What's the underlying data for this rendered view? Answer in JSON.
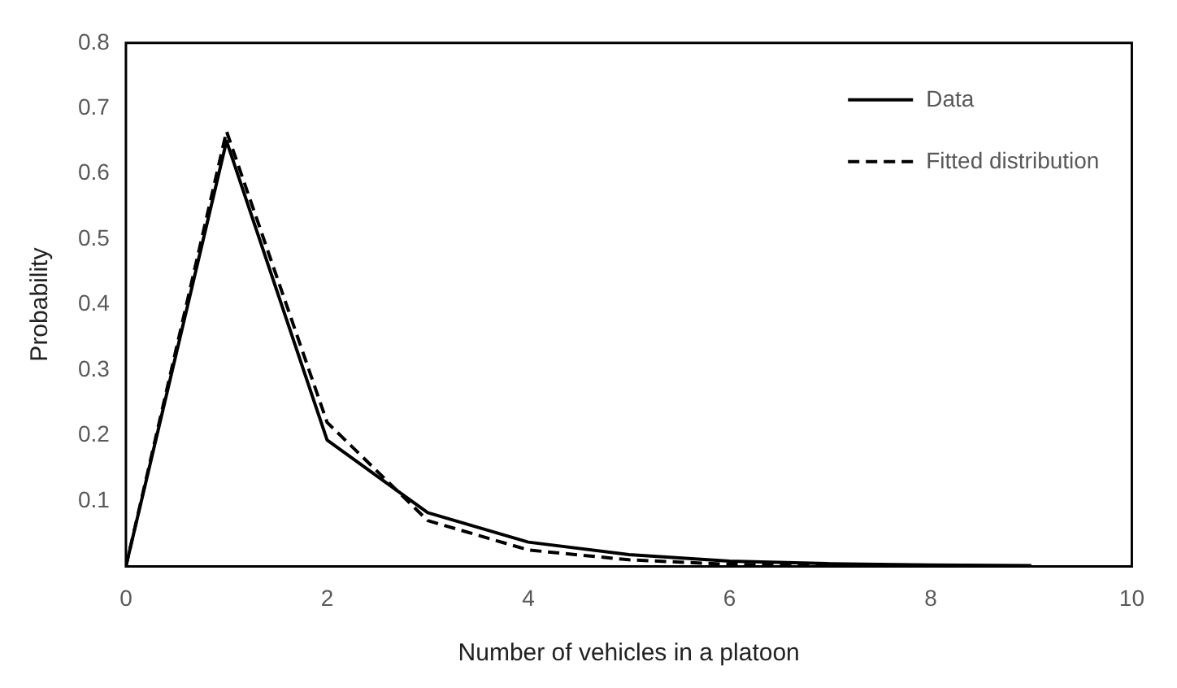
{
  "chart_data": {
    "type": "line",
    "xlabel": "Number of vehicles in a platoon",
    "ylabel": "Probability",
    "x": [
      0,
      1,
      2,
      3,
      4,
      5,
      6,
      7,
      8,
      9
    ],
    "series": [
      {
        "name": "Data",
        "color": "#000000",
        "line_style": "solid",
        "values": [
          0,
          0.65,
          0.193,
          0.082,
          0.037,
          0.018,
          0.008,
          0.004,
          0.002,
          0.001
        ]
      },
      {
        "name": "Fitted distribution",
        "color": "#000000",
        "line_style": "dashed",
        "values": [
          0,
          0.665,
          0.22,
          0.07,
          0.025,
          0.01,
          0.003,
          0.001,
          0,
          0
        ]
      }
    ],
    "xlim": [
      0,
      10
    ],
    "xticks": [
      0,
      2,
      4,
      6,
      8,
      10
    ],
    "ylim": [
      0,
      0.8
    ],
    "yticks": [
      0.1,
      0.2,
      0.3,
      0.4,
      0.5,
      0.6,
      0.7,
      0.8
    ],
    "grid": false,
    "legend": "top right",
    "marker": "none"
  }
}
